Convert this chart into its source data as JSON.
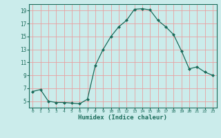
{
  "x": [
    0,
    1,
    2,
    3,
    4,
    5,
    6,
    7,
    8,
    9,
    10,
    11,
    12,
    13,
    14,
    15,
    16,
    17,
    18,
    19,
    20,
    21,
    22,
    23
  ],
  "y": [
    6.5,
    6.8,
    5.0,
    4.8,
    4.8,
    4.7,
    4.6,
    5.3,
    10.5,
    13.0,
    15.0,
    16.5,
    17.5,
    19.2,
    19.3,
    19.1,
    17.5,
    16.5,
    15.3,
    12.8,
    10.0,
    10.3,
    9.5,
    9.0
  ],
  "xlabel": "Humidex (Indice chaleur)",
  "xlim": [
    -0.5,
    23.5
  ],
  "ylim": [
    4.0,
    20.0
  ],
  "yticks": [
    5,
    7,
    9,
    11,
    13,
    15,
    17,
    19
  ],
  "xticks": [
    0,
    1,
    2,
    3,
    4,
    5,
    6,
    7,
    8,
    9,
    10,
    11,
    12,
    13,
    14,
    15,
    16,
    17,
    18,
    19,
    20,
    21,
    22,
    23
  ],
  "line_color": "#1a6b5a",
  "marker": "D",
  "marker_size": 2.0,
  "bg_color": "#cbeceb",
  "grid_color": "#e8a0a0",
  "tick_color": "#1a6b5a",
  "label_color": "#1a6b5a",
  "spine_color": "#1a6b5a"
}
